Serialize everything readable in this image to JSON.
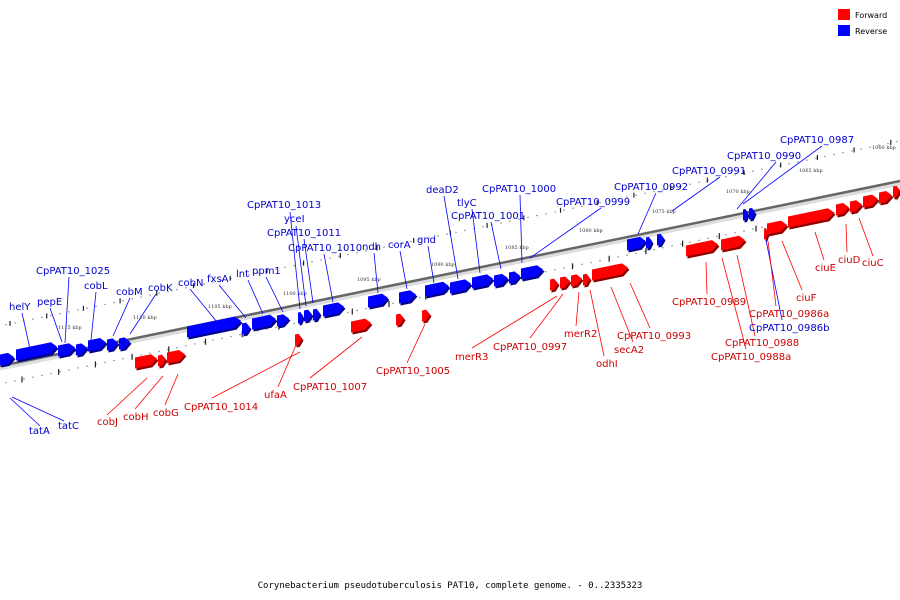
{
  "caption": "Corynebacterium pseudotuberculosis PAT10, complete genome. - 0..2335323",
  "colors": {
    "forward": "#ff0000",
    "reverse": "#0000ff",
    "forward_label": "#cc0000",
    "reverse_label": "#0000cc",
    "backbone": "#555555"
  },
  "legend": {
    "forward": "Forward",
    "reverse": "Reverse"
  },
  "ticks": [
    "1060 kbp",
    "1065 kbp",
    "1070 kbp",
    "1075 kbp",
    "1080 kbp",
    "1085 kbp",
    "1090 kbp",
    "1095 kbp",
    "1100 kbp",
    "1105 kbp",
    "1110 kbp",
    "1115 kbp"
  ],
  "reverse_labels": [
    "CpPAT10_0987",
    "CpPAT10_0990",
    "CpPAT10_0991",
    "CpPAT10_0992",
    "CpPAT10_0999",
    "CpPAT10_1000",
    "CpPAT10_1001",
    "tlyC",
    "deaD2",
    "gnd",
    "corA",
    "ndh",
    "CpPAT10_1010",
    "CpPAT10_1011",
    "yceI",
    "CpPAT10_1013",
    "ppm1",
    "lnt",
    "fxsA",
    "cobN",
    "cobK",
    "cobM",
    "cobL",
    "CpPAT10_1025",
    "pepE",
    "helY",
    "tatA",
    "tatC",
    "CpPAT10_0986b"
  ],
  "forward_labels": [
    "ciuC",
    "ciuD",
    "ciuE",
    "ciuF",
    "CpPAT10_0986a",
    "CpPAT10_0988",
    "CpPAT10_0988a",
    "CpPAT10_0989",
    "CpPAT10_0993",
    "secA2",
    "odhI",
    "merR2",
    "CpPAT10_0997",
    "merR3",
    "CpPAT10_1005",
    "CpPAT10_1007",
    "ufaA",
    "CpPAT10_1014",
    "cobG",
    "cobH",
    "cobJ"
  ]
}
